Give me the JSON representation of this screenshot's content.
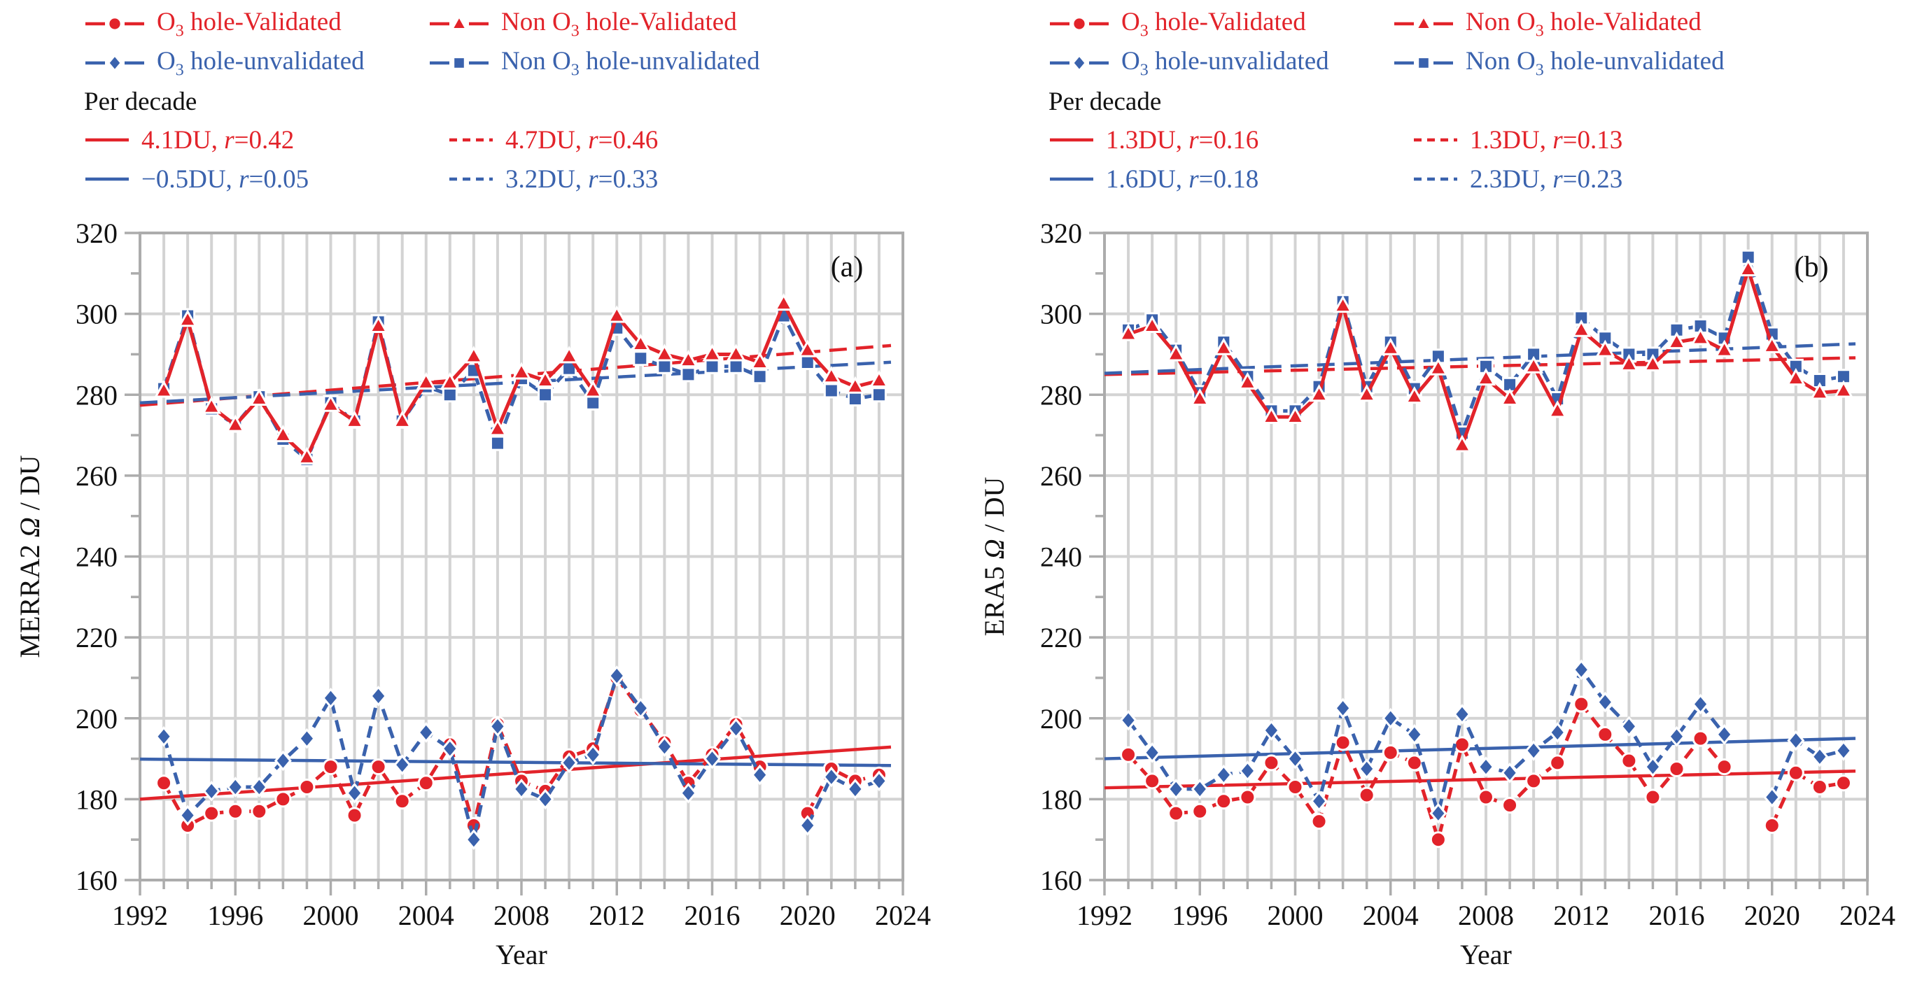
{
  "figure": {
    "type": "two-panel line chart",
    "x_axis_label": "Year",
    "x_tick_labels": [
      "1992",
      "1996",
      "2000",
      "2004",
      "2008",
      "2012",
      "2016",
      "2020",
      "2024"
    ],
    "y_tick_labels": [
      "160",
      "180",
      "200",
      "220",
      "240",
      "260",
      "280",
      "300",
      "320"
    ]
  },
  "colors": {
    "red": "#e2232a",
    "blue": "#3a62ad",
    "grid": "#d3d3d3",
    "frame": "#acacac",
    "text": "#111111"
  },
  "legend": {
    "per_decade_label": "Per decade",
    "series": [
      {
        "key": "o3_validated",
        "color": "red",
        "marker": "circle",
        "parts": [
          {
            "t": "O"
          },
          {
            "t": "3",
            "sub": true
          },
          {
            "t": " hole-Validated"
          }
        ]
      },
      {
        "key": "non_o3_validated",
        "color": "red",
        "marker": "triangle",
        "parts": [
          {
            "t": "Non O"
          },
          {
            "t": "3",
            "sub": true
          },
          {
            "t": " hole-Validated"
          }
        ]
      },
      {
        "key": "o3_unvalidated",
        "color": "blue",
        "marker": "diamond",
        "parts": [
          {
            "t": "O"
          },
          {
            "t": "3",
            "sub": true
          },
          {
            "t": " hole-unvalidated"
          }
        ]
      },
      {
        "key": "non_o3_unvalidated",
        "color": "blue",
        "marker": "square",
        "parts": [
          {
            "t": "Non O"
          },
          {
            "t": "3",
            "sub": true
          },
          {
            "t": " hole-unvalidated"
          }
        ]
      }
    ]
  },
  "chart_data": [
    {
      "type": "line",
      "panel_tag": "(a)",
      "ylabel": "MERRA2 Ω / DU",
      "xlabel": "Year",
      "xlim": [
        1992,
        2024
      ],
      "ylim": [
        160,
        320
      ],
      "x_major_step": 4,
      "y_major_step": 20,
      "grid": "vertical every year, horizontal every 20 DU",
      "years": [
        1993,
        1994,
        1995,
        1996,
        1997,
        1998,
        1999,
        2000,
        2001,
        2002,
        2003,
        2004,
        2005,
        2006,
        2007,
        2008,
        2009,
        2010,
        2011,
        2012,
        2013,
        2014,
        2015,
        2016,
        2017,
        2018,
        2019,
        2020,
        2021,
        2022,
        2023
      ],
      "series": [
        {
          "name": "Non O3 hole-unvalidated",
          "color": "blue",
          "marker": "square",
          "line": "dashed",
          "values": [
            281.5,
            299.5,
            276.5,
            272.5,
            279.5,
            269,
            264,
            278,
            273.5,
            298,
            273.5,
            282,
            280,
            286,
            268,
            284,
            280,
            286.5,
            278,
            296.5,
            289,
            287,
            285,
            287,
            287,
            284.5,
            299.5,
            288,
            281,
            279,
            280
          ]
        },
        {
          "name": "Non O3 hole-Validated",
          "color": "red",
          "marker": "triangle",
          "line": "solid",
          "values": [
            281,
            298.5,
            277,
            272.5,
            279,
            270,
            264.5,
            277.5,
            273.5,
            297,
            273.5,
            283,
            283,
            289.5,
            271.5,
            285.5,
            283.5,
            289.5,
            281,
            299.5,
            292.5,
            290,
            288.5,
            290,
            290,
            288,
            302.5,
            291,
            284.5,
            282,
            283.5
          ]
        },
        {
          "name": "O3 hole-Validated",
          "color": "red",
          "marker": "circle",
          "line": "dashed",
          "values": [
            184,
            173.5,
            176.5,
            177,
            177,
            180,
            183,
            188,
            176,
            188,
            179.5,
            184,
            193.5,
            173.5,
            198.5,
            184.5,
            182,
            190.5,
            192.5,
            210,
            202,
            194,
            184,
            191,
            198.5,
            188,
            null,
            176.5,
            187.5,
            184.5,
            186
          ]
        },
        {
          "name": "O3 hole-unvalidated",
          "color": "blue",
          "marker": "diamond",
          "line": "dashed",
          "values": [
            195.5,
            176,
            182,
            183,
            183,
            189.5,
            195,
            205,
            181.5,
            205.5,
            188.5,
            196.5,
            192.5,
            170,
            198,
            182.5,
            180,
            189,
            191,
            210.5,
            202.5,
            193,
            181.5,
            190,
            197.5,
            186,
            null,
            173.5,
            185.5,
            182.5,
            184.5
          ]
        }
      ],
      "trends": [
        {
          "name": "O3 hole-Validated trend",
          "du": "4.1DU",
          "r": "0.42",
          "color": "red",
          "style": "solid",
          "v1992": 180.0,
          "v2024": 193.1
        },
        {
          "name": "Non O3 hole-Validated trend",
          "du": "4.7DU",
          "r": "0.46",
          "color": "red",
          "style": "dashed",
          "v1992": 277.4,
          "v2024": 292.4
        },
        {
          "name": "O3 hole-unvalidated trend",
          "du": "−0.5DU",
          "r": "0.05",
          "color": "blue",
          "style": "solid",
          "v1992": 189.9,
          "v2024": 188.3
        },
        {
          "name": "Non O3 hole-unvalidated trend",
          "du": "3.2DU",
          "r": "0.33",
          "color": "blue",
          "style": "dashed",
          "v1992": 278.0,
          "v2024": 288.2
        }
      ]
    },
    {
      "type": "line",
      "panel_tag": "(b)",
      "ylabel": "ERA5 Ω / DU",
      "xlabel": "Year",
      "xlim": [
        1992,
        2024
      ],
      "ylim": [
        160,
        320
      ],
      "x_major_step": 4,
      "y_major_step": 20,
      "grid": "vertical every year, horizontal every 20 DU",
      "years": [
        1993,
        1994,
        1995,
        1996,
        1997,
        1998,
        1999,
        2000,
        2001,
        2002,
        2003,
        2004,
        2005,
        2006,
        2007,
        2008,
        2009,
        2010,
        2011,
        2012,
        2013,
        2014,
        2015,
        2016,
        2017,
        2018,
        2019,
        2020,
        2021,
        2022,
        2023
      ],
      "series": [
        {
          "name": "Non O3 hole-unvalidated",
          "color": "blue",
          "marker": "square",
          "line": "dashed",
          "values": [
            296,
            298.5,
            291,
            280.5,
            293,
            284.5,
            276,
            276,
            282,
            303,
            282,
            293,
            281.5,
            289.5,
            270.5,
            287,
            282.5,
            290,
            279,
            299,
            294,
            290,
            290,
            296,
            297,
            294,
            314,
            295,
            287,
            283.5,
            284.5
          ]
        },
        {
          "name": "Non O3 hole-Validated",
          "color": "red",
          "marker": "triangle",
          "line": "solid",
          "values": [
            295,
            297,
            290,
            279,
            291.5,
            283,
            274.5,
            274.5,
            280,
            302,
            280,
            291.5,
            279.5,
            286.5,
            267.5,
            284,
            279,
            287,
            276,
            296,
            291,
            287.5,
            287.5,
            293,
            294,
            291,
            311,
            292,
            284,
            280.5,
            281
          ]
        },
        {
          "name": "O3 hole-Validated",
          "color": "red",
          "marker": "circle",
          "line": "dashed",
          "values": [
            191,
            184.5,
            176.5,
            177,
            179.5,
            180.5,
            189,
            183,
            174.5,
            194,
            181,
            191.5,
            189,
            170,
            193.5,
            180.5,
            178.5,
            184.5,
            189,
            203.5,
            196,
            189.5,
            180.5,
            187.5,
            195,
            188,
            null,
            173.5,
            186.5,
            183,
            184
          ]
        },
        {
          "name": "O3 hole-unvalidated",
          "color": "blue",
          "marker": "diamond",
          "line": "dashed",
          "values": [
            199.5,
            191.5,
            182.5,
            182.5,
            186,
            187,
            197,
            190,
            179.5,
            202.5,
            187.5,
            200,
            196,
            176.5,
            201,
            188,
            186.5,
            192,
            196.5,
            212,
            204,
            198,
            188,
            195.5,
            203.5,
            196,
            null,
            180.5,
            194.5,
            190.5,
            192
          ]
        }
      ],
      "trends": [
        {
          "name": "O3 hole-Validated trend",
          "du": "1.3DU",
          "r": "0.16",
          "color": "red",
          "style": "solid",
          "v1992": 182.8,
          "v2024": 187.0
        },
        {
          "name": "Non O3 hole-Validated trend",
          "du": "1.3DU",
          "r": "0.13",
          "color": "red",
          "style": "dashed",
          "v1992": 285.0,
          "v2024": 289.2
        },
        {
          "name": "O3 hole-unvalidated trend",
          "du": "1.6DU",
          "r": "0.18",
          "color": "blue",
          "style": "solid",
          "v1992": 190.0,
          "v2024": 195.1
        },
        {
          "name": "Non O3 hole-unvalidated trend",
          "du": "2.3DU",
          "r": "0.23",
          "color": "blue",
          "style": "dashed",
          "v1992": 285.3,
          "v2024": 292.7
        }
      ]
    }
  ]
}
